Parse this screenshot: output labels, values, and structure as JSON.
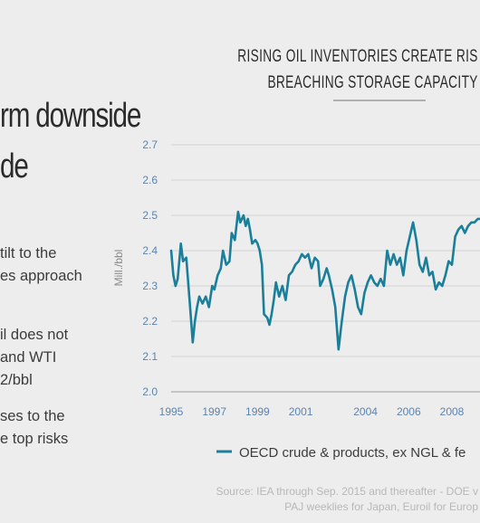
{
  "heading": {
    "line1": "rm downside",
    "line2": "de"
  },
  "left_text": [
    "tilt to the",
    "es approach",
    "il does not",
    "and WTI",
    "2/bbl",
    "ses to the",
    "e top risks"
  ],
  "chart_data": {
    "type": "line",
    "title_line1": "RISING OIL INVENTORIES CREATE RIS",
    "title_line2": "BREACHING STORAGE CAPACITY",
    "ylabel": "Mill./bbl",
    "ylim": [
      2.0,
      2.7
    ],
    "yticks": [
      "2.0",
      "2.1",
      "2.2",
      "2.3",
      "2.4",
      "2.5",
      "2.6",
      "2.7"
    ],
    "xticks": [
      "1995",
      "1997",
      "1999",
      "2001",
      "2004",
      "2006",
      "2008"
    ],
    "xlim": [
      1995,
      2009.3
    ],
    "grid": true,
    "color": "#1a7f9a",
    "series": [
      {
        "name": "OECD crude & products, ex NGL & fe",
        "x": [
          1995.0,
          1995.1,
          1995.2,
          1995.3,
          1995.45,
          1995.55,
          1995.7,
          1995.8,
          1995.9,
          1996.0,
          1996.1,
          1996.2,
          1996.3,
          1996.45,
          1996.6,
          1996.75,
          1996.9,
          1997.0,
          1997.15,
          1997.3,
          1997.4,
          1997.55,
          1997.7,
          1997.8,
          1997.95,
          1998.1,
          1998.2,
          1998.35,
          1998.45,
          1998.55,
          1998.65,
          1998.75,
          1998.9,
          1999.0,
          1999.1,
          1999.2,
          1999.3,
          1999.45,
          1999.55,
          1999.65,
          1999.75,
          1999.85,
          2000.0,
          2000.15,
          2000.3,
          2000.45,
          2000.6,
          2000.75,
          2000.9,
          2001.05,
          2001.2,
          2001.35,
          2001.5,
          2001.65,
          2001.8,
          2001.9,
          2002.05,
          2002.2,
          2002.3,
          2002.45,
          2002.6,
          2002.75,
          2002.9,
          2003.05,
          2003.2,
          2003.35,
          2003.5,
          2003.65,
          2003.8,
          2003.95,
          2004.1,
          2004.25,
          2004.4,
          2004.55,
          2004.7,
          2004.85,
          2005.0,
          2005.15,
          2005.3,
          2005.45,
          2005.6,
          2005.75,
          2005.9,
          2006.05,
          2006.2,
          2006.35,
          2006.5,
          2006.65,
          2006.8,
          2006.95,
          2007.1,
          2007.25,
          2007.4,
          2007.55,
          2007.7,
          2007.85,
          2008.0,
          2008.15,
          2008.3,
          2008.45,
          2008.6,
          2008.75,
          2008.9,
          2009.05,
          2009.2,
          2009.3
        ],
        "y": [
          2.4,
          2.33,
          2.3,
          2.32,
          2.42,
          2.37,
          2.38,
          2.3,
          2.22,
          2.14,
          2.2,
          2.24,
          2.27,
          2.25,
          2.27,
          2.24,
          2.3,
          2.29,
          2.33,
          2.35,
          2.4,
          2.36,
          2.37,
          2.45,
          2.43,
          2.51,
          2.48,
          2.5,
          2.47,
          2.49,
          2.46,
          2.42,
          2.43,
          2.42,
          2.4,
          2.36,
          2.22,
          2.21,
          2.19,
          2.22,
          2.26,
          2.31,
          2.27,
          2.3,
          2.26,
          2.33,
          2.34,
          2.36,
          2.37,
          2.39,
          2.38,
          2.39,
          2.35,
          2.38,
          2.37,
          2.3,
          2.32,
          2.35,
          2.33,
          2.29,
          2.24,
          2.12,
          2.2,
          2.27,
          2.31,
          2.33,
          2.29,
          2.24,
          2.22,
          2.28,
          2.31,
          2.33,
          2.31,
          2.3,
          2.32,
          2.3,
          2.4,
          2.36,
          2.39,
          2.36,
          2.38,
          2.33,
          2.4,
          2.44,
          2.48,
          2.43,
          2.36,
          2.34,
          2.38,
          2.33,
          2.34,
          2.29,
          2.31,
          2.3,
          2.33,
          2.37,
          2.36,
          2.44,
          2.46,
          2.47,
          2.45,
          2.47,
          2.48,
          2.48,
          2.49,
          2.49
        ]
      }
    ]
  },
  "source_line1": "Source: IEA through Sep. 2015 and thereafter - DOE v",
  "source_line2": "PAJ weeklies for Japan, Euroil for Europ"
}
